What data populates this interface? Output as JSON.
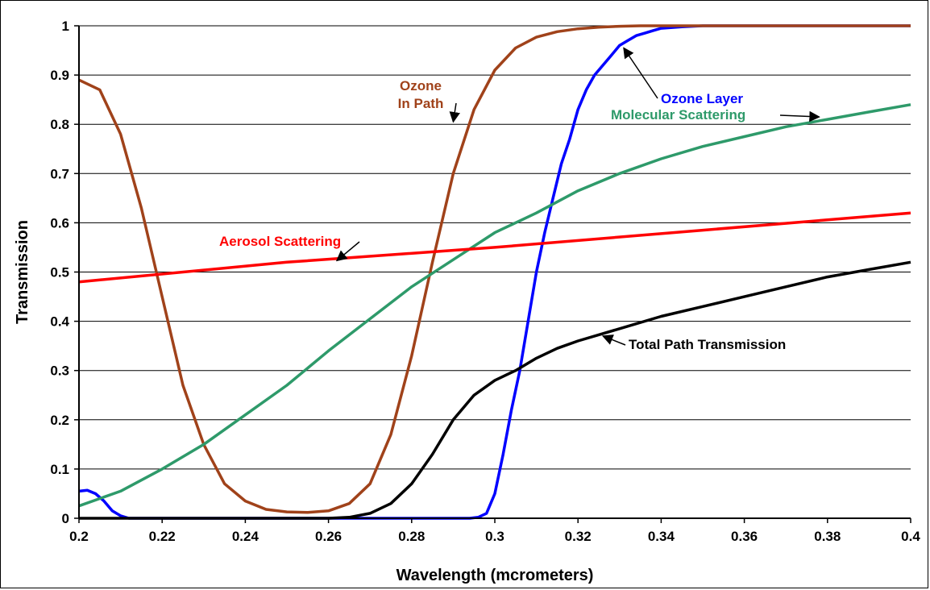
{
  "chart_data": {
    "type": "line",
    "title": "",
    "xlabel": "Wavelength (mcrometers)",
    "ylabel": "Transmission",
    "xlim": [
      0.2,
      0.4
    ],
    "ylim": [
      0,
      1
    ],
    "x_ticks": [
      "0.2",
      "0.22",
      "0.24",
      "0.26",
      "0.28",
      "0.3",
      "0.32",
      "0.34",
      "0.36",
      "0.38",
      "0.4"
    ],
    "y_ticks": [
      "0",
      "0.1",
      "0.2",
      "0.3",
      "0.4",
      "0.5",
      "0.6",
      "0.7",
      "0.8",
      "0.9",
      "1"
    ],
    "grid": "horizontal",
    "legend": "none",
    "series": [
      {
        "name": "Ozone Layer",
        "color": "#0000ff",
        "x": [
          0.2,
          0.202,
          0.204,
          0.206,
          0.208,
          0.21,
          0.212,
          0.22,
          0.26,
          0.28,
          0.294,
          0.296,
          0.298,
          0.3,
          0.302,
          0.304,
          0.306,
          0.308,
          0.31,
          0.312,
          0.314,
          0.316,
          0.318,
          0.32,
          0.322,
          0.324,
          0.326,
          0.328,
          0.33,
          0.332,
          0.334,
          0.336,
          0.338,
          0.34,
          0.345,
          0.35,
          0.36,
          0.4
        ],
        "y": [
          0.055,
          0.057,
          0.05,
          0.035,
          0.015,
          0.005,
          0.0,
          0.0,
          0.0,
          0.0,
          0.0,
          0.002,
          0.01,
          0.05,
          0.13,
          0.22,
          0.3,
          0.4,
          0.5,
          0.58,
          0.65,
          0.72,
          0.77,
          0.83,
          0.87,
          0.9,
          0.92,
          0.94,
          0.96,
          0.97,
          0.98,
          0.985,
          0.99,
          0.995,
          0.998,
          1.0,
          1.0,
          1.0
        ]
      },
      {
        "name": "Ozone In Path",
        "color": "#a0421a",
        "x": [
          0.2,
          0.205,
          0.21,
          0.215,
          0.22,
          0.225,
          0.23,
          0.235,
          0.24,
          0.245,
          0.25,
          0.255,
          0.26,
          0.265,
          0.27,
          0.275,
          0.28,
          0.285,
          0.29,
          0.295,
          0.3,
          0.305,
          0.31,
          0.315,
          0.32,
          0.325,
          0.33,
          0.335,
          0.34,
          0.4
        ],
        "y": [
          0.89,
          0.87,
          0.78,
          0.63,
          0.45,
          0.27,
          0.15,
          0.07,
          0.035,
          0.018,
          0.013,
          0.012,
          0.015,
          0.03,
          0.07,
          0.17,
          0.33,
          0.52,
          0.7,
          0.83,
          0.91,
          0.955,
          0.977,
          0.988,
          0.994,
          0.997,
          0.999,
          1.0,
          1.0,
          1.0
        ]
      },
      {
        "name": "Molecular Scattering",
        "color": "#2e9a6a",
        "x": [
          0.2,
          0.21,
          0.22,
          0.23,
          0.24,
          0.25,
          0.26,
          0.27,
          0.28,
          0.29,
          0.3,
          0.31,
          0.32,
          0.33,
          0.34,
          0.35,
          0.36,
          0.37,
          0.38,
          0.39,
          0.4
        ],
        "y": [
          0.025,
          0.055,
          0.1,
          0.15,
          0.21,
          0.27,
          0.34,
          0.405,
          0.47,
          0.525,
          0.58,
          0.62,
          0.665,
          0.7,
          0.73,
          0.755,
          0.775,
          0.795,
          0.81,
          0.825,
          0.84
        ]
      },
      {
        "name": "Aerosol Scattering",
        "color": "#ff0000",
        "x": [
          0.2,
          0.25,
          0.3,
          0.35,
          0.4
        ],
        "y": [
          0.48,
          0.52,
          0.55,
          0.585,
          0.62
        ]
      },
      {
        "name": "Total Path Transmission",
        "color": "#000000",
        "x": [
          0.2,
          0.26,
          0.265,
          0.27,
          0.275,
          0.28,
          0.285,
          0.29,
          0.295,
          0.3,
          0.305,
          0.31,
          0.315,
          0.32,
          0.33,
          0.34,
          0.35,
          0.36,
          0.37,
          0.38,
          0.39,
          0.4
        ],
        "y": [
          0.0,
          0.0,
          0.002,
          0.01,
          0.03,
          0.07,
          0.13,
          0.2,
          0.25,
          0.28,
          0.3,
          0.325,
          0.345,
          0.36,
          0.385,
          0.41,
          0.43,
          0.45,
          0.47,
          0.49,
          0.505,
          0.52
        ]
      }
    ],
    "annotations": [
      {
        "id": "ozone-layer",
        "lines": [
          "Ozone Layer"
        ],
        "color": "#0000ff",
        "arrow_to": [
          0.331,
          0.955
        ]
      },
      {
        "id": "ozone-in-path",
        "lines": [
          "Ozone",
          "In Path"
        ],
        "color": "#a0421a",
        "arrow_to": [
          0.29,
          0.805
        ]
      },
      {
        "id": "molecular-scattering",
        "lines": [
          "Molecular Scattering"
        ],
        "color": "#2e9a6a",
        "arrow_to": [
          0.378,
          0.815
        ]
      },
      {
        "id": "aerosol-scattering",
        "lines": [
          "Aerosol Scattering"
        ],
        "color": "#ff0000",
        "arrow_to": [
          0.262,
          0.523
        ]
      },
      {
        "id": "total-path-transmission",
        "lines": [
          "Total Path Transmission"
        ],
        "color": "#000000",
        "arrow_to": [
          0.326,
          0.37
        ]
      }
    ]
  }
}
